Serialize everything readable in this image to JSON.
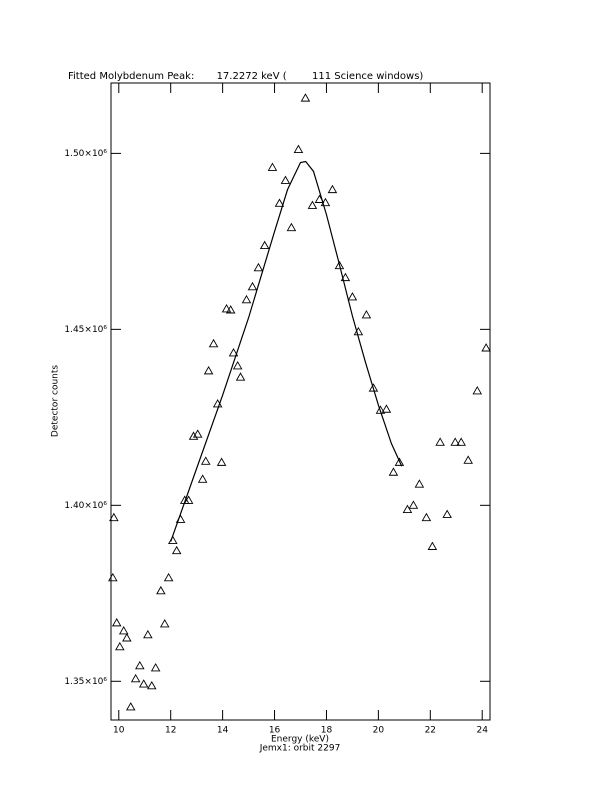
{
  "chart_data": {
    "type": "scatter",
    "title": "Fitted Molybdenum Peak:       17.2272 keV (        111 Science windows)",
    "x_label": "Energy (keV)",
    "subtitle": "Jemx1: orbit 2297",
    "y_label": "Detector counts",
    "xlim": [
      9.7,
      24.3
    ],
    "ylim": [
      1339000,
      1520000
    ],
    "xticks": [
      10,
      12,
      14,
      16,
      18,
      20,
      22,
      24
    ],
    "yticks": [
      {
        "value": 1350000,
        "label": "1.35×10⁶"
      },
      {
        "value": 1400000,
        "label": "1.40×10⁶"
      },
      {
        "value": 1450000,
        "label": "1.45×10⁶"
      },
      {
        "value": 1500000,
        "label": "1.50×10⁶"
      }
    ],
    "series": [
      {
        "type": "scatter",
        "marker": "triangle",
        "color": "#000000",
        "x": [
          9.77,
          9.81,
          9.92,
          10.04,
          10.19,
          10.31,
          10.46,
          10.65,
          10.81,
          10.96,
          11.12,
          11.27,
          11.42,
          11.62,
          11.77,
          11.92,
          12.08,
          12.23,
          12.38,
          12.54,
          12.69,
          12.88,
          13.04,
          13.23,
          13.35,
          13.46,
          13.65,
          13.81,
          13.96,
          14.15,
          14.31,
          14.42,
          14.58,
          14.69,
          14.92,
          15.15,
          15.38,
          15.62,
          15.92,
          16.19,
          16.42,
          16.65,
          16.92,
          17.19,
          17.46,
          17.73,
          17.96,
          18.23,
          18.5,
          18.73,
          19.0,
          19.23,
          19.54,
          19.81,
          20.08,
          20.31,
          20.58,
          20.81,
          21.12,
          21.35,
          21.58,
          21.85,
          22.08,
          22.38,
          22.65,
          22.96,
          23.19,
          23.46,
          23.81,
          24.15
        ],
        "values": [
          1379400,
          1396500,
          1366600,
          1359800,
          1364300,
          1362300,
          1342700,
          1350700,
          1354400,
          1349200,
          1363200,
          1348700,
          1353800,
          1375700,
          1366300,
          1379400,
          1390000,
          1387100,
          1396000,
          1401400,
          1401400,
          1419600,
          1420200,
          1407400,
          1412500,
          1438200,
          1445900,
          1428800,
          1412200,
          1455800,
          1455500,
          1443300,
          1439600,
          1436400,
          1458400,
          1462100,
          1467500,
          1473800,
          1496000,
          1485800,
          1492300,
          1478900,
          1501100,
          1515700,
          1485200,
          1486900,
          1486000,
          1489700,
          1468100,
          1464700,
          1459200,
          1449300,
          1454100,
          1433300,
          1427000,
          1427300,
          1409400,
          1412200,
          1398800,
          1400000,
          1406000,
          1396500,
          1388300,
          1417900,
          1397400,
          1417900,
          1417900,
          1412800,
          1432500,
          1444700
        ]
      },
      {
        "type": "line",
        "color": "#000000",
        "x": [
          12.0,
          13.0,
          14.0,
          15.0,
          16.0,
          16.5,
          17.0,
          17.2,
          17.5,
          18.0,
          18.5,
          19.0,
          19.5,
          20.0,
          20.5,
          20.9
        ],
        "values": [
          1389700,
          1410500,
          1431300,
          1453300,
          1477800,
          1489700,
          1497400,
          1497700,
          1494900,
          1482600,
          1468400,
          1453800,
          1440700,
          1428500,
          1417600,
          1411100
        ]
      }
    ]
  }
}
